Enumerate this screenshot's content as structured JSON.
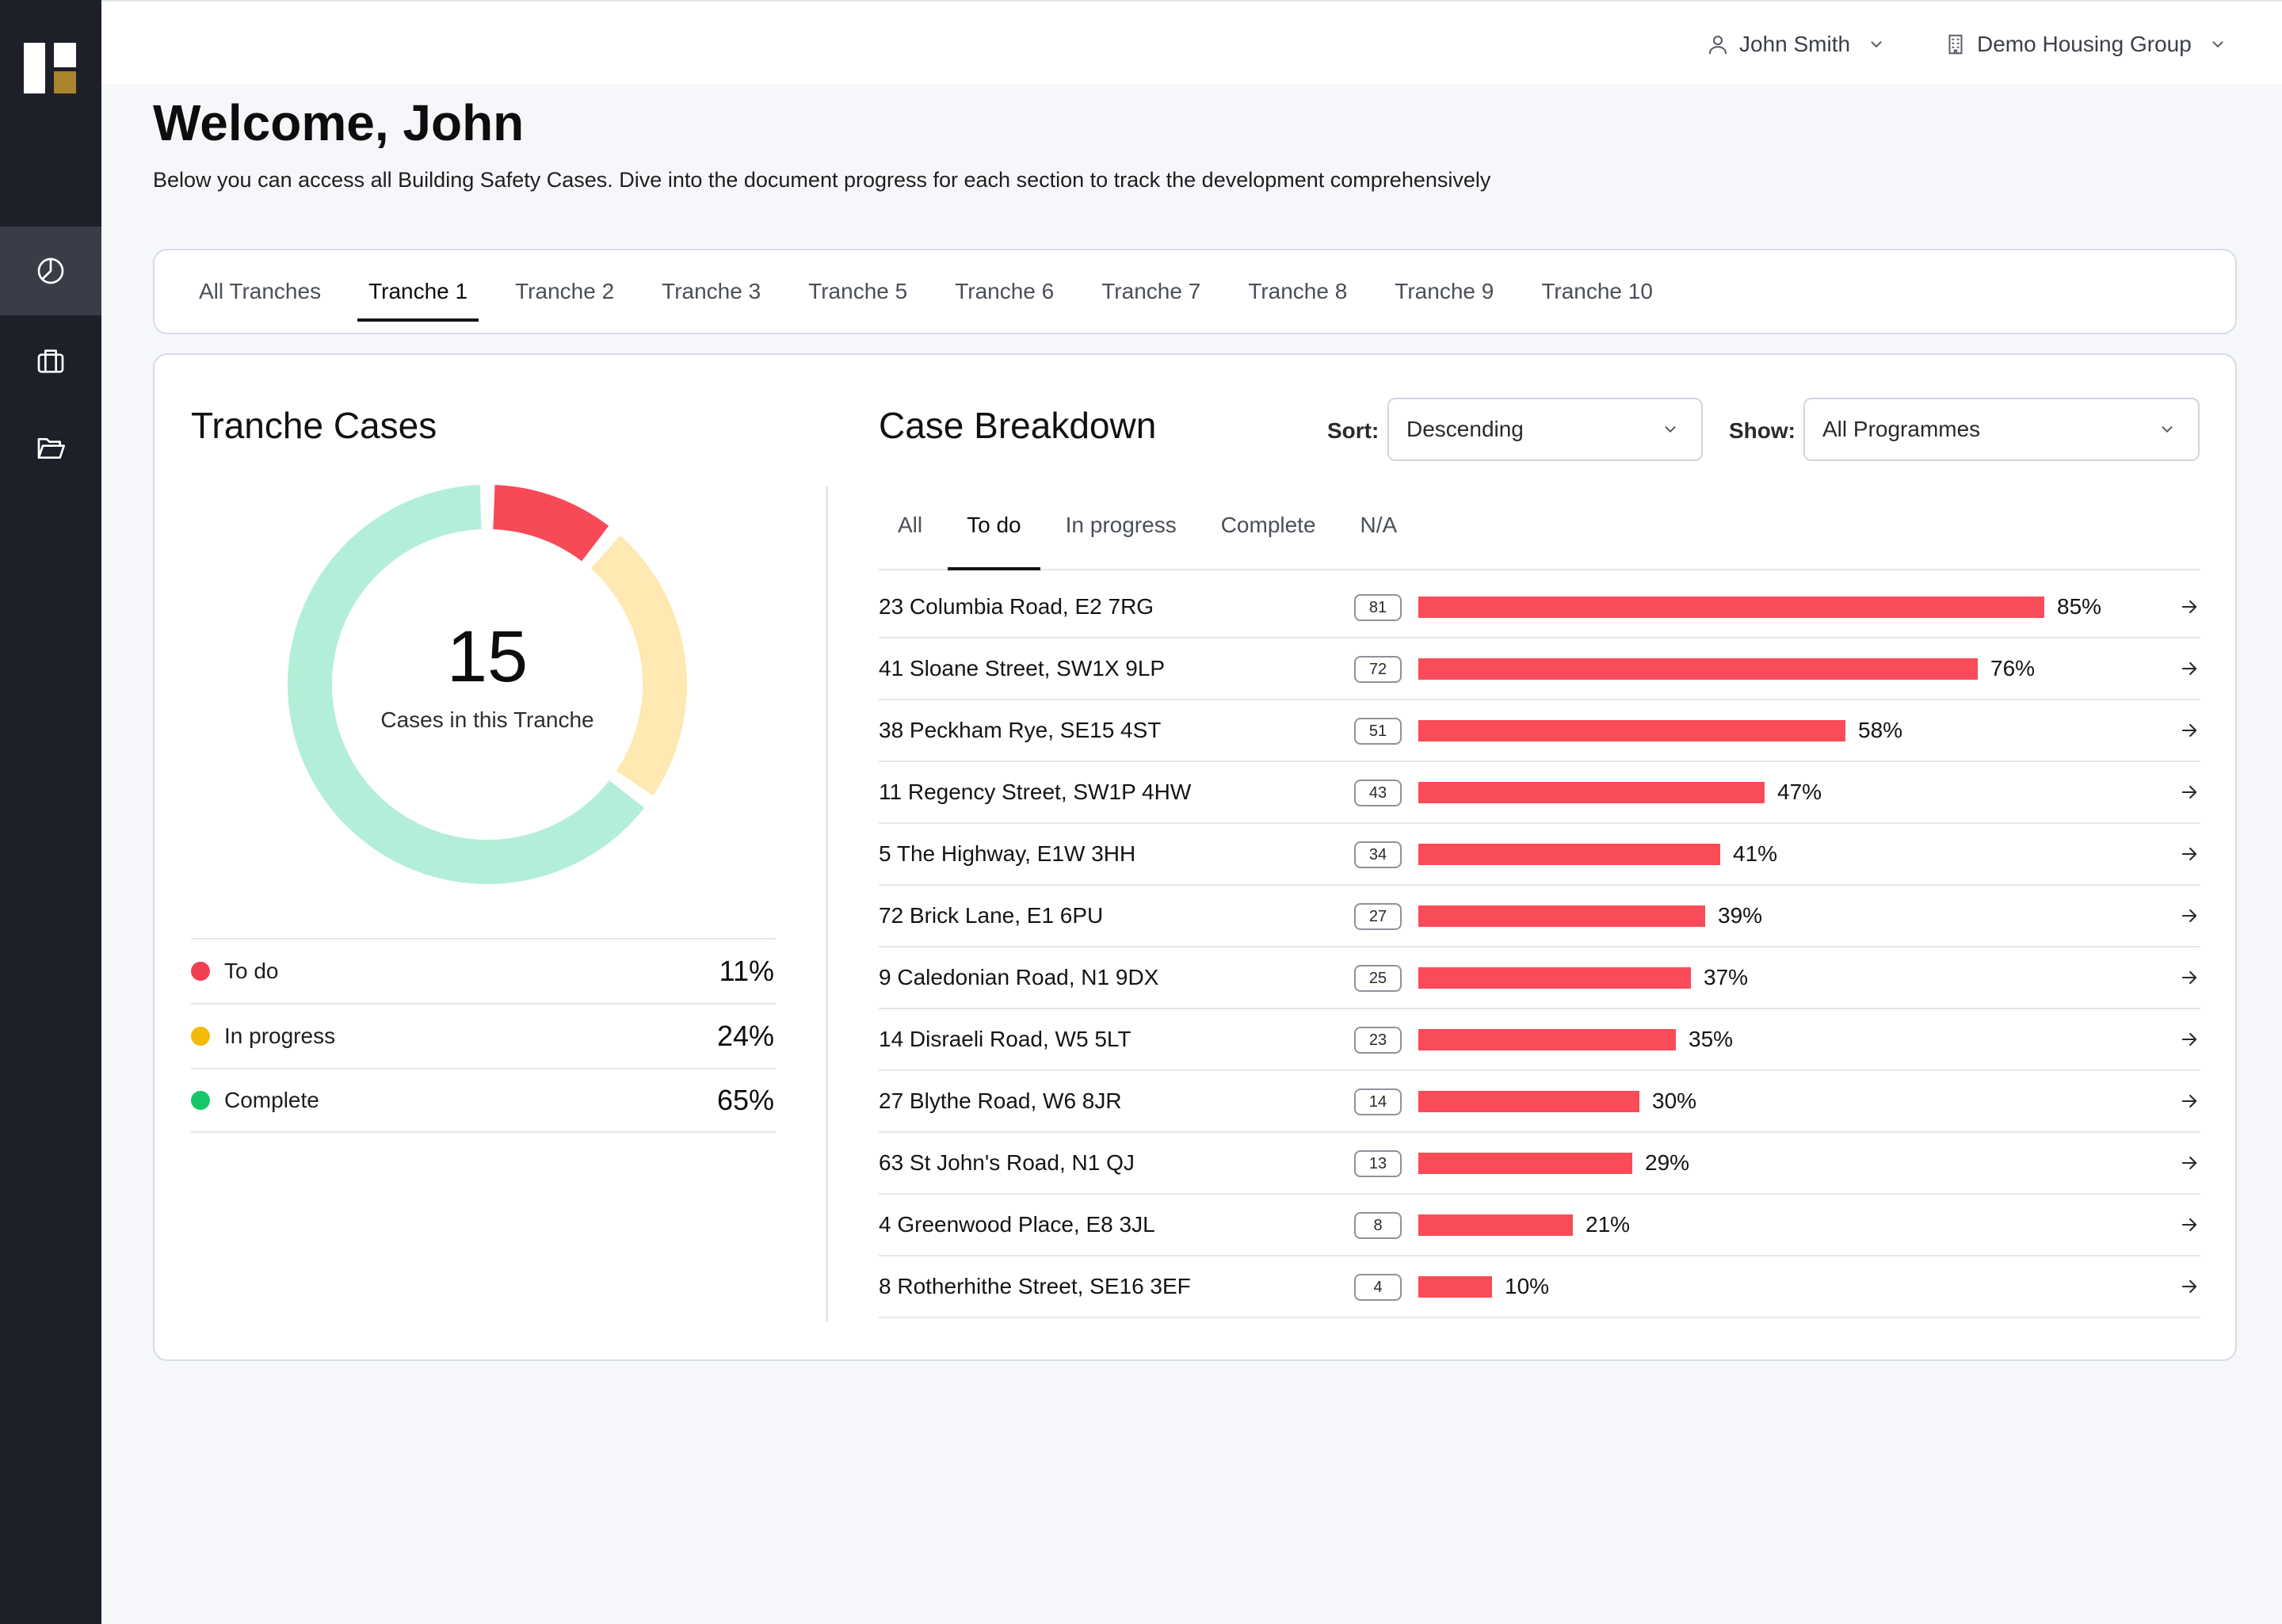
{
  "user": {
    "name": "John Smith",
    "organisation": "Demo Housing Group"
  },
  "header": {
    "welcome": "Welcome, John",
    "subtitle": "Below you can access all Building Safety Cases. Dive into the document progress for each section to track the development comprehensively"
  },
  "tranche_tabs": [
    {
      "label": "All Tranches",
      "active": false
    },
    {
      "label": "Tranche 1",
      "active": true
    },
    {
      "label": "Tranche 2",
      "active": false
    },
    {
      "label": "Tranche 3",
      "active": false
    },
    {
      "label": "Tranche 5",
      "active": false
    },
    {
      "label": "Tranche 6",
      "active": false
    },
    {
      "label": "Tranche 7",
      "active": false
    },
    {
      "label": "Tranche 8",
      "active": false
    },
    {
      "label": "Tranche 9",
      "active": false
    },
    {
      "label": "Tranche 10",
      "active": false
    }
  ],
  "tranche_cases": {
    "title": "Tranche Cases",
    "total": "15",
    "caption": "Cases in this Tranche",
    "legend": [
      {
        "label": "To do",
        "pct": "11%",
        "value": 11,
        "color": "#f0404f",
        "ring_color": "#f84956"
      },
      {
        "label": "In progress",
        "pct": "24%",
        "value": 24,
        "color": "#f2bb0a",
        "ring_color": "#fde9b1"
      },
      {
        "label": "Complete",
        "pct": "65%",
        "value": 65,
        "color": "#16c76a",
        "ring_color": "#b3efd8"
      }
    ]
  },
  "case_breakdown": {
    "title": "Case Breakdown",
    "sort_label": "Sort:",
    "sort_value": "Descending",
    "show_label": "Show:",
    "show_value": "All Programmes",
    "status_tabs": [
      {
        "label": "All",
        "active": false
      },
      {
        "label": "To do",
        "active": true
      },
      {
        "label": "In progress",
        "active": false
      },
      {
        "label": "Complete",
        "active": false
      },
      {
        "label": "N/A",
        "active": false
      }
    ],
    "bar_color": "#fa4b58",
    "cases": [
      {
        "name": "23 Columbia Road, E2 7RG",
        "count": "81",
        "pct": 85
      },
      {
        "name": "41 Sloane Street, SW1X 9LP",
        "count": "72",
        "pct": 76
      },
      {
        "name": "38 Peckham Rye, SE15 4ST",
        "count": "51",
        "pct": 58
      },
      {
        "name": "11 Regency Street, SW1P 4HW",
        "count": "43",
        "pct": 47
      },
      {
        "name": "5 The Highway, E1W 3HH",
        "count": "34",
        "pct": 41
      },
      {
        "name": "72 Brick Lane, E1 6PU",
        "count": "27",
        "pct": 39
      },
      {
        "name": "9 Caledonian Road, N1 9DX",
        "count": "25",
        "pct": 37
      },
      {
        "name": "14 Disraeli Road, W5 5LT",
        "count": "23",
        "pct": 35
      },
      {
        "name": "27 Blythe Road, W6 8JR",
        "count": "14",
        "pct": 30
      },
      {
        "name": "63 St John's Road, N1 QJ",
        "count": "13",
        "pct": 29
      },
      {
        "name": "4 Greenwood Place, E8 3JL",
        "count": "8",
        "pct": 21
      },
      {
        "name": "8 Rotherhithe Street, SE16 3EF",
        "count": "4",
        "pct": 10
      }
    ]
  }
}
